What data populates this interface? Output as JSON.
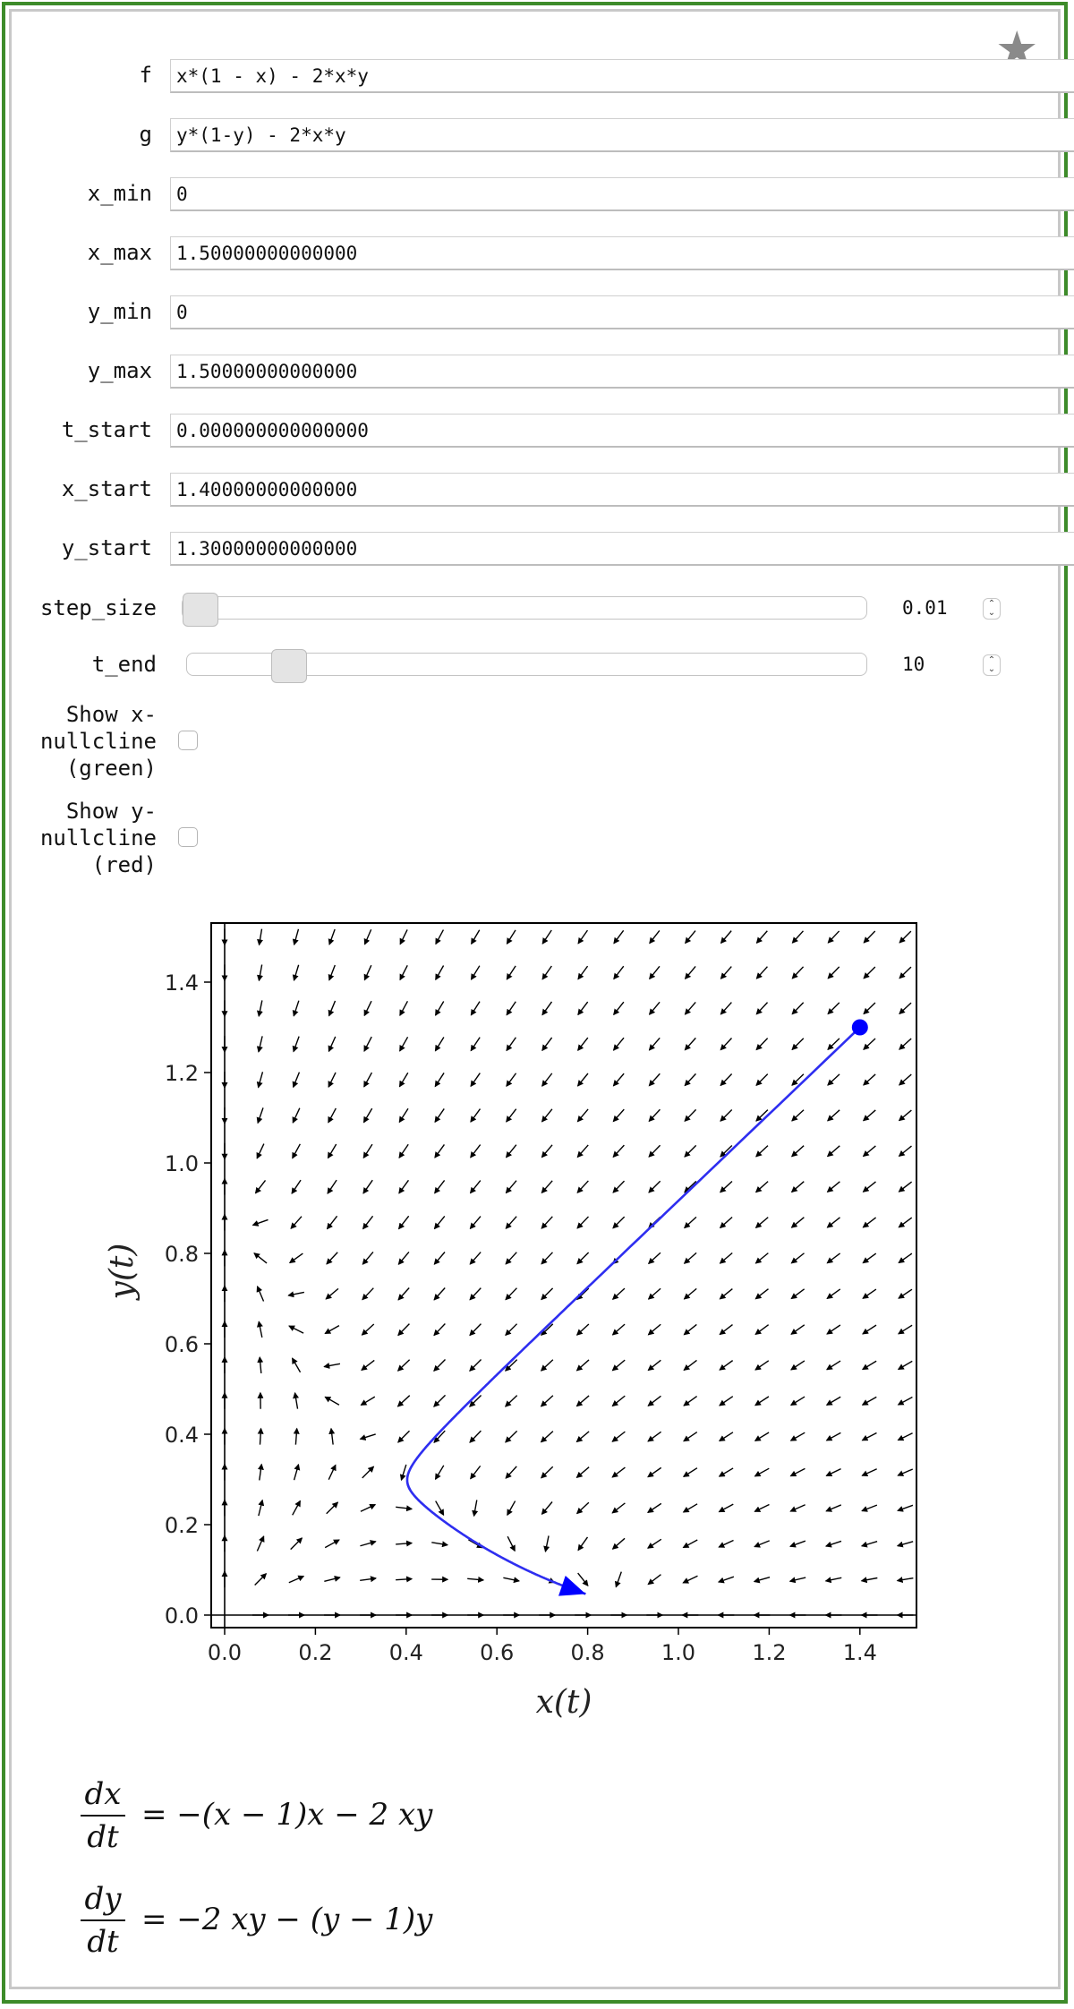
{
  "inputs": [
    {
      "label": "f",
      "value": "x*(1 - x) - 2*x*y"
    },
    {
      "label": "g",
      "value": "y*(1-y) - 2*x*y"
    },
    {
      "label": "x_min",
      "value": "0"
    },
    {
      "label": "x_max",
      "value": "1.50000000000000"
    },
    {
      "label": "y_min",
      "value": "0"
    },
    {
      "label": "y_max",
      "value": "1.50000000000000"
    },
    {
      "label": "t_start",
      "value": "0.000000000000000"
    },
    {
      "label": "x_start",
      "value": "1.40000000000000"
    },
    {
      "label": "y_start",
      "value": "1.30000000000000"
    }
  ],
  "sliders": {
    "step_size": {
      "label": "step_size",
      "value": "0.01",
      "position": 0.0
    },
    "t_end": {
      "label": "t_end",
      "value": "10",
      "position": 0.13
    }
  },
  "checkboxes": {
    "x_nullcline": {
      "label": "Show x-nullcline (green)",
      "checked": false,
      "color": "#00a000"
    },
    "y_nullcline": {
      "label": "Show y-nullcline (red)",
      "checked": false,
      "color": "#d00000"
    }
  },
  "icons": {
    "favorite": "star-icon"
  },
  "colors": {
    "border": "#3d8b2a",
    "trajectory": "#2e2ef0",
    "start_point": "#0000ff"
  },
  "chart_data": {
    "type": "direction-field",
    "title": "",
    "xlabel": "x(t)",
    "ylabel": "y(t)",
    "xlim": [
      0,
      1.5
    ],
    "ylim": [
      0,
      1.5
    ],
    "xticks": [
      "0.0",
      "0.2",
      "0.4",
      "0.6",
      "0.8",
      "1.0",
      "1.2",
      "1.4"
    ],
    "yticks": [
      "0.0",
      "0.2",
      "0.4",
      "0.6",
      "0.8",
      "1.0",
      "1.2",
      "1.4"
    ],
    "f": "x*(1 - x) - 2*x*y",
    "g": "y*(1-y) - 2*x*y",
    "start": [
      1.4,
      1.3
    ],
    "t_range": [
      0,
      10
    ],
    "trajectory_end": [
      0.8,
      0.06
    ],
    "grid": false
  },
  "equations": {
    "dx_num": "dx",
    "dx_den": "dt",
    "dx_rhs": "= −(x − 1)x − 2 xy",
    "dy_num": "dy",
    "dy_den": "dt",
    "dy_rhs": "= −2 xy − (y − 1)y"
  }
}
